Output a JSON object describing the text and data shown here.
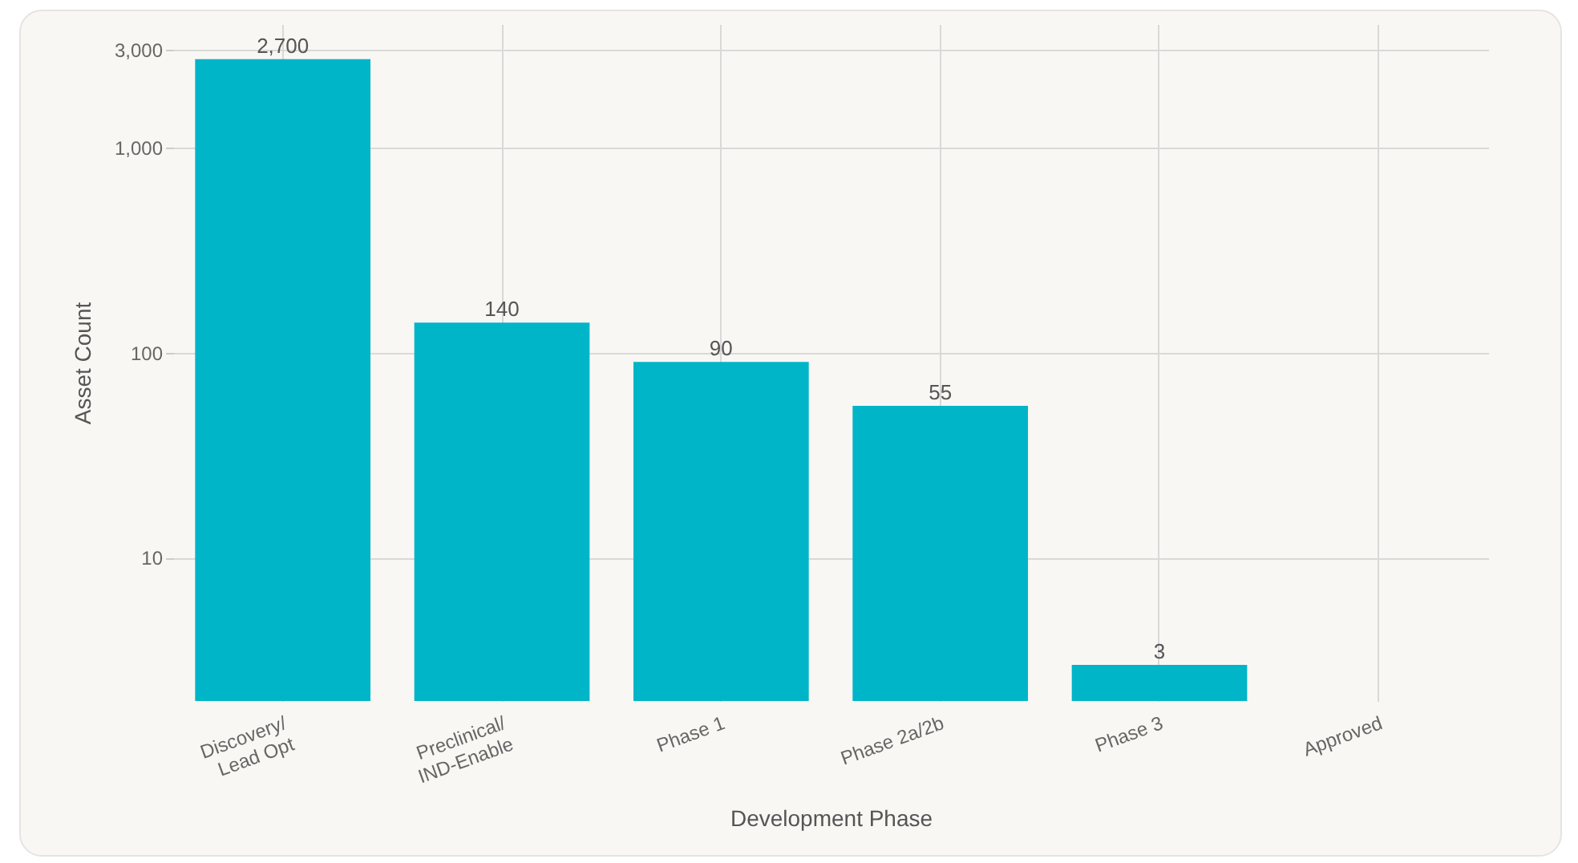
{
  "chart_data": {
    "type": "bar",
    "xlabel": "Development Phase",
    "ylabel": "Asset Count",
    "categories": [
      "Discovery/\nLead Opt",
      "Preclinical/\nIND-Enable",
      "Phase 1",
      "Phase 2a/2b",
      "Phase 3",
      "Approved"
    ],
    "values": [
      2700,
      140,
      90,
      55,
      3,
      null
    ],
    "value_labels": [
      "2,700",
      "140",
      "90",
      "55",
      "3",
      null
    ],
    "color": "#00b5c8",
    "log": "y",
    "ylim": [
      2,
      4000
    ],
    "yticks": [
      10,
      100,
      {
        "value": 1000,
        "label": "1,000"
      },
      {
        "value": 3000,
        "label": "3,000"
      }
    ],
    "grid": true
  }
}
